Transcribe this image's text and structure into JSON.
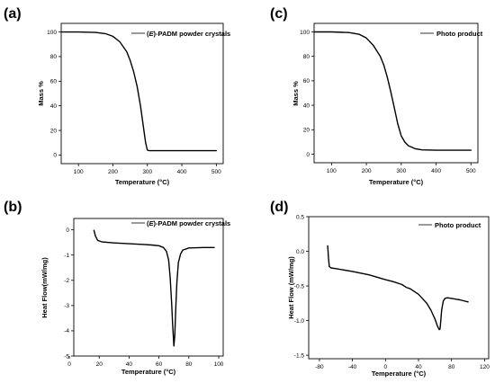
{
  "panel_labels": [
    "(a)",
    "(b)",
    "(c)",
    "(d)"
  ],
  "legends": {
    "a": {
      "prefix": "(",
      "italic": "E",
      "suffix": ")-PADM powder crystals"
    },
    "b": {
      "prefix": "(",
      "italic": "E",
      "suffix": ")-PADM powder crystals"
    },
    "c": {
      "text": "Photo product"
    },
    "d": {
      "text": "Photo product"
    }
  },
  "chart_data": [
    {
      "panel": "a",
      "type": "line",
      "xlabel": "Temperature (°C)",
      "ylabel": "Mass %",
      "xlim": [
        50,
        520
      ],
      "ylim": [
        -7,
        107
      ],
      "xticks": [
        100,
        200,
        300,
        400,
        500
      ],
      "yticks": [
        0,
        20,
        40,
        60,
        80,
        100
      ],
      "legend_position": "top-right",
      "series": [
        {
          "name": "(E)-PADM powder crystals",
          "x": [
            50,
            100,
            150,
            180,
            200,
            220,
            240,
            250,
            260,
            270,
            280,
            285,
            290,
            295,
            300,
            305,
            310,
            400,
            500
          ],
          "y": [
            100,
            100,
            99.6,
            98.5,
            96.5,
            92,
            84,
            77,
            68,
            56,
            40,
            30,
            20,
            10,
            4,
            3.5,
            3.5,
            3.5,
            3.5
          ]
        }
      ]
    },
    {
      "panel": "b",
      "type": "line",
      "xlabel": "Temperature (°C)",
      "ylabel": "Heat Flow(mW/mg)",
      "xlim": [
        3,
        103
      ],
      "ylim": [
        -5,
        0.45
      ],
      "xticks": [
        0,
        20,
        40,
        60,
        80,
        100
      ],
      "yticks": [
        0,
        -1,
        -2,
        -3,
        -4,
        -5
      ],
      "legend_position": "top-right",
      "series": [
        {
          "name": "(E)-PADM powder crystals",
          "x": [
            16.5,
            17.5,
            19,
            22,
            30,
            40,
            50,
            55,
            60,
            63,
            65,
            66.5,
            67.5,
            68.5,
            69.2,
            70,
            70.6,
            71.2,
            72,
            73,
            74.5,
            76,
            80,
            90,
            97
          ],
          "y": [
            -0.02,
            -0.25,
            -0.42,
            -0.48,
            -0.52,
            -0.55,
            -0.58,
            -0.6,
            -0.63,
            -0.7,
            -0.85,
            -1.2,
            -1.9,
            -2.9,
            -3.8,
            -4.6,
            -4.2,
            -3.2,
            -2.1,
            -1.3,
            -0.95,
            -0.8,
            -0.72,
            -0.7,
            -0.7
          ]
        }
      ]
    },
    {
      "panel": "c",
      "type": "line",
      "xlabel": "Temperature (°C)",
      "ylabel": "Mass %",
      "xlim": [
        50,
        520
      ],
      "ylim": [
        -7,
        107
      ],
      "xticks": [
        100,
        200,
        300,
        400,
        500
      ],
      "yticks": [
        0,
        20,
        40,
        60,
        80,
        100
      ],
      "legend_position": "top-right",
      "series": [
        {
          "name": "Photo product",
          "x": [
            50,
            100,
            150,
            180,
            200,
            220,
            240,
            250,
            260,
            270,
            280,
            290,
            300,
            310,
            320,
            340,
            360,
            400,
            500
          ],
          "y": [
            100,
            100,
            99.5,
            98,
            95,
            89,
            80,
            73,
            63,
            51,
            38,
            25,
            15,
            10,
            7,
            4.5,
            3.5,
            3.2,
            3.2
          ]
        }
      ]
    },
    {
      "panel": "d",
      "type": "line",
      "xlabel": "Temperature (°C)",
      "ylabel": "Heat Flow (mW/mg)",
      "xlim": [
        -93,
        125
      ],
      "ylim": [
        -1.55,
        0.5
      ],
      "xticks": [
        -80,
        -40,
        0,
        40,
        80,
        120
      ],
      "yticks": [
        0.5,
        0.0,
        -0.5,
        -1.0,
        -1.5
      ],
      "ytick_labels": [
        "0.5",
        "0.0",
        "-0.5",
        "-1.0",
        "-1.5"
      ],
      "legend_position": "top-right",
      "series": [
        {
          "name": "Photo product",
          "x": [
            -70,
            -69,
            -68,
            -66,
            -60,
            -40,
            -20,
            0,
            10,
            20,
            25,
            30,
            40,
            50,
            55,
            60,
            63,
            65,
            66,
            67,
            68,
            70,
            72,
            75,
            80,
            90,
            100
          ],
          "y": [
            0.08,
            -0.1,
            -0.22,
            -0.24,
            -0.25,
            -0.29,
            -0.34,
            -0.41,
            -0.44,
            -0.48,
            -0.52,
            -0.54,
            -0.62,
            -0.75,
            -0.85,
            -0.98,
            -1.08,
            -1.13,
            -1.12,
            -1.0,
            -0.85,
            -0.72,
            -0.68,
            -0.67,
            -0.68,
            -0.7,
            -0.73
          ]
        }
      ]
    }
  ]
}
